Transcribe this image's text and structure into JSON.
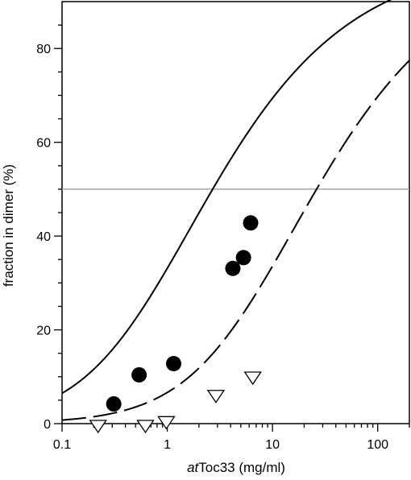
{
  "chart_data": {
    "type": "scatter",
    "xscale": "log",
    "xlim": [
      0.1,
      200
    ],
    "ylim": [
      0,
      90
    ],
    "xlabel_italic": "at",
    "xlabel_rest": "Toc33 (mg/ml)",
    "ylabel": "fraction in dimer (%)",
    "x_tick_labels": [
      "0.1",
      "1",
      "10",
      "100"
    ],
    "x_tick_values": [
      0.1,
      1,
      10,
      100
    ],
    "y_tick_labels": [
      "0",
      "20",
      "40",
      "60",
      "80"
    ],
    "y_tick_values": [
      0,
      20,
      40,
      60,
      80
    ],
    "reference_line_y": 50,
    "reference_line_color": "#a6a6a6",
    "series": [
      {
        "marker": "filled-circle",
        "color": "#000000",
        "points": [
          {
            "x": 0.31,
            "y": 4.2
          },
          {
            "x": 0.54,
            "y": 10.4
          },
          {
            "x": 1.15,
            "y": 12.8
          },
          {
            "x": 4.2,
            "y": 33.1
          },
          {
            "x": 5.3,
            "y": 35.4
          },
          {
            "x": 6.2,
            "y": 42.8
          }
        ],
        "fit": {
          "style": "solid",
          "kd": 10.8
        }
      },
      {
        "marker": "open-triangle-down",
        "color": "#000000",
        "points": [
          {
            "x": 0.22,
            "y": -0.6
          },
          {
            "x": 0.62,
            "y": -0.6
          },
          {
            "x": 0.98,
            "y": 0.2
          },
          {
            "x": 2.9,
            "y": 5.8
          },
          {
            "x": 6.5,
            "y": 9.7
          }
        ],
        "fit": {
          "style": "dashed",
          "kd": 105
        }
      }
    ],
    "grid": false,
    "legend": "none"
  }
}
